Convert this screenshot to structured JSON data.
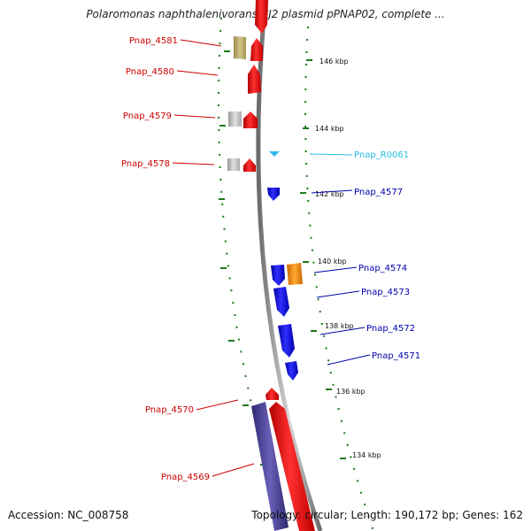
{
  "title": "Polaromonas naphthalenivorans CJ2 plasmid pPNAP02, complete ...",
  "footer": {
    "accession": "Accession: NC_008758",
    "summary": "Topology: circular; Length: 190,172 bp; Genes: 162"
  },
  "colors": {
    "backbone": "#8f8f8f",
    "scale_ticks": "#1a7a1a",
    "reverse_label": "#cc0000",
    "forward_label": "#0000aa",
    "rna_label": "#22bbdd"
  },
  "scale_labels": [
    "146 kbp",
    "144 kbp",
    "142 kbp",
    "140 kbp",
    "138 kbp",
    "136 kbp",
    "134 kbp"
  ],
  "genes": [
    {
      "name": "Pnap_4581",
      "strand": "reverse",
      "color": "#ff0000"
    },
    {
      "name": "Pnap_4580",
      "strand": "reverse",
      "color": "#ff0000"
    },
    {
      "name": "Pnap_4579",
      "strand": "reverse",
      "color": "#ff0000"
    },
    {
      "name": "Pnap_4578",
      "strand": "reverse",
      "color": "#ff0000"
    },
    {
      "name": "Pnap_R0061",
      "strand": "forward",
      "color": "#33bbee"
    },
    {
      "name": "Pnap_4577",
      "strand": "forward",
      "color": "#0000ff"
    },
    {
      "name": "Pnap_4574",
      "strand": "forward",
      "color": "#0000ff"
    },
    {
      "name": "Pnap_4573",
      "strand": "forward",
      "color": "#0000ff"
    },
    {
      "name": "Pnap_4572",
      "strand": "forward",
      "color": "#0000ff"
    },
    {
      "name": "Pnap_4571",
      "strand": "forward",
      "color": "#0000ff"
    },
    {
      "name": "Pnap_4570",
      "strand": "reverse",
      "color": "#ff0000"
    },
    {
      "name": "Pnap_4569",
      "strand": "reverse",
      "color": "#ff0000"
    }
  ],
  "cog_track": [
    "#b8a86a",
    "#c0c0c0",
    "#c0c0c0",
    "#ff8800",
    "#4a3f8c"
  ]
}
